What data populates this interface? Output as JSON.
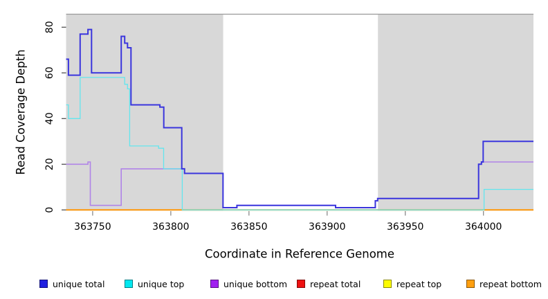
{
  "chart_data": {
    "type": "line",
    "subtype": "step",
    "title": "",
    "xlabel": "Coordinate in Reference Genome",
    "ylabel": "Read Coverage Depth",
    "xlim": [
      363733,
      364032
    ],
    "ylim": [
      0,
      80
    ],
    "x_ticks": [
      363750,
      363800,
      363850,
      363900,
      363950,
      364000
    ],
    "y_ticks": [
      0,
      20,
      40,
      60,
      80
    ],
    "grid": false,
    "legend_position": "bottom",
    "background_color": "#ffffff",
    "shaded_regions": {
      "color": "#d8d8d8",
      "ranges": [
        [
          363733,
          363833.5
        ],
        [
          363932.5,
          364032
        ]
      ]
    },
    "border_color": "#999999",
    "tick_color_left": "#444444",
    "tick_color_bottom": "#808080",
    "series": [
      {
        "name": "unique total",
        "color": "#3a35dd",
        "swatch": "#2020e0",
        "line_width": 2,
        "steps": [
          [
            363733,
            66
          ],
          [
            363734.5,
            59
          ],
          [
            363742,
            77
          ],
          [
            363747,
            79
          ],
          [
            363749.3,
            60
          ],
          [
            363768.3,
            76
          ],
          [
            363770.5,
            73
          ],
          [
            363772.3,
            71
          ],
          [
            363774.5,
            46
          ],
          [
            363793,
            45
          ],
          [
            363795.5,
            36
          ],
          [
            363807,
            18
          ],
          [
            363808.8,
            16
          ],
          [
            363833.4,
            1
          ],
          [
            363842.3,
            2
          ],
          [
            363905.4,
            1
          ],
          [
            363930.8,
            4
          ],
          [
            363932.3,
            5
          ],
          [
            363996.9,
            20
          ],
          [
            363998.7,
            21
          ],
          [
            363999.8,
            30
          ]
        ]
      },
      {
        "name": "unique top",
        "color": "#62e6ee",
        "swatch": "#00e8f0",
        "line_width": 1.3,
        "steps": [
          [
            363733,
            46
          ],
          [
            363734.5,
            40
          ],
          [
            363742,
            58
          ],
          [
            363770.5,
            55
          ],
          [
            363772.3,
            53
          ],
          [
            363773.7,
            28
          ],
          [
            363792.2,
            27
          ],
          [
            363795.4,
            18
          ],
          [
            363807.3,
            0
          ],
          [
            364000.4,
            9
          ]
        ]
      },
      {
        "name": "unique bottom",
        "color": "#b083e8",
        "swatch": "#a020f0",
        "line_width": 1.6,
        "steps": [
          [
            363733,
            20
          ],
          [
            363747,
            21
          ],
          [
            363748.5,
            2
          ],
          [
            363768.3,
            18
          ],
          [
            363808.8,
            16
          ],
          [
            363833.4,
            1
          ],
          [
            363842.3,
            2
          ],
          [
            363905.4,
            1
          ],
          [
            363930.8,
            4
          ],
          [
            363932.3,
            5
          ],
          [
            363996.9,
            20
          ],
          [
            363998.7,
            21
          ]
        ]
      },
      {
        "name": "repeat total",
        "color": "#dd2222",
        "swatch": "#ee1111",
        "line_width": 1.3,
        "steps": [
          [
            363733,
            0
          ]
        ]
      },
      {
        "name": "repeat top",
        "color": "#f0f000",
        "swatch": "#fcfc00",
        "line_width": 1.3,
        "steps": [
          [
            363733,
            0
          ]
        ]
      },
      {
        "name": "repeat bottom",
        "color": "#ff9708",
        "swatch": "#ff9f10",
        "line_width": 2,
        "steps": [
          [
            363733,
            0
          ]
        ]
      }
    ]
  }
}
